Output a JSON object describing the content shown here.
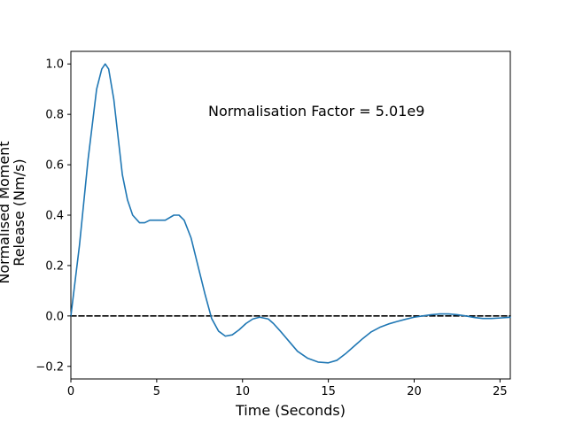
{
  "chart_data": {
    "type": "line",
    "title": "",
    "xlabel": "Time (Seconds)",
    "ylabel_lines": [
      "Normalised Moment",
      "Release (Nm/s)"
    ],
    "xlim": [
      0,
      25.6
    ],
    "ylim": [
      -0.25,
      1.05
    ],
    "xticks": [
      0,
      5,
      10,
      15,
      20,
      25
    ],
    "yticks": [
      -0.2,
      0.0,
      0.2,
      0.4,
      0.6,
      0.8,
      1.0
    ],
    "xtick_labels": [
      "0",
      "5",
      "10",
      "15",
      "20",
      "25"
    ],
    "ytick_labels": [
      "−0.2",
      "0.0",
      "0.2",
      "0.4",
      "0.6",
      "0.8",
      "1.0"
    ],
    "grid": false,
    "annotation": "Normalisation Factor = 5.01e9",
    "series": [
      {
        "color": "#1f77b4",
        "style": "solid",
        "x": [
          0,
          0.5,
          1.0,
          1.5,
          1.8,
          2.0,
          2.2,
          2.5,
          2.8,
          3.0,
          3.3,
          3.6,
          4.0,
          4.3,
          4.6,
          5.0,
          5.5,
          6.0,
          6.3,
          6.6,
          7.0,
          7.4,
          7.8,
          8.2,
          8.6,
          9.0,
          9.4,
          9.8,
          10.2,
          10.6,
          11.0,
          11.5,
          11.8,
          12.2,
          12.7,
          13.2,
          13.8,
          14.4,
          15.0,
          15.5,
          16.0,
          16.5,
          17.0,
          17.5,
          18.0,
          18.5,
          19.0,
          19.5,
          20.0,
          20.5,
          21.0,
          21.5,
          22.0,
          22.5,
          23.0,
          23.5,
          24.0,
          24.5,
          25.0,
          25.6
        ],
        "y": [
          0.0,
          0.28,
          0.62,
          0.9,
          0.98,
          1.0,
          0.98,
          0.86,
          0.68,
          0.56,
          0.46,
          0.4,
          0.37,
          0.37,
          0.38,
          0.38,
          0.38,
          0.4,
          0.4,
          0.38,
          0.31,
          0.2,
          0.09,
          -0.01,
          -0.06,
          -0.08,
          -0.075,
          -0.055,
          -0.03,
          -0.012,
          -0.005,
          -0.012,
          -0.03,
          -0.06,
          -0.1,
          -0.14,
          -0.168,
          -0.183,
          -0.186,
          -0.176,
          -0.15,
          -0.12,
          -0.09,
          -0.063,
          -0.045,
          -0.032,
          -0.022,
          -0.013,
          -0.005,
          0.0,
          0.005,
          0.008,
          0.008,
          0.005,
          0.0,
          -0.006,
          -0.01,
          -0.01,
          -0.008,
          -0.005
        ]
      },
      {
        "color": "#000000",
        "style": "dashed",
        "x": [
          0,
          25.6
        ],
        "y": [
          0,
          0
        ]
      }
    ]
  }
}
